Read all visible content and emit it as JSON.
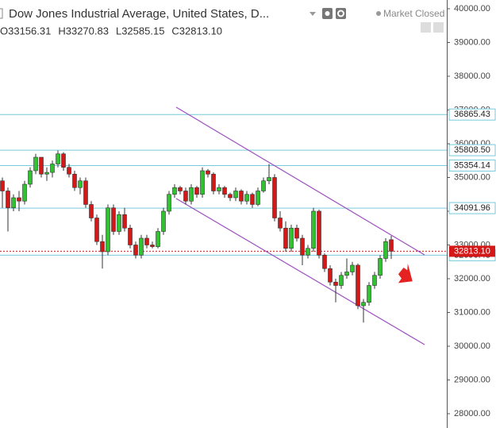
{
  "chart_data": {
    "type": "candlestick",
    "title": "Dow Jones Industrial Average, United States, D...",
    "status": "Market Closed",
    "ohlc_legend": [
      "O33156.31",
      "H33270.83",
      "L32585.15",
      "C32813.10"
    ],
    "up_color": "#2fc42f",
    "down_color": "#d41717",
    "open": [
      34900,
      34600,
      34100,
      34400,
      34300,
      34800,
      35200,
      35600,
      35100,
      35150,
      35400,
      35700,
      35300,
      35100,
      34700,
      34900,
      34200,
      33800,
      33100,
      32800,
      34100,
      33400,
      33900,
      33500,
      33000,
      32700,
      33200,
      33000,
      32950,
      33400,
      34000,
      34500,
      34700,
      34600,
      34300,
      34700,
      34500,
      35200,
      35100,
      34600,
      34700,
      34500,
      34400,
      34600,
      34300,
      34500,
      34200,
      34600,
      34900,
      35000,
      33800,
      33500,
      32900,
      33500,
      33200,
      32700,
      32900,
      34000,
      32700,
      32300,
      31900,
      31800,
      32100,
      32200,
      32400,
      31200,
      31300,
      31800,
      32100,
      32600,
      33156.31
    ],
    "high": [
      35000,
      34700,
      34500,
      34600,
      34900,
      35300,
      35700,
      35600,
      35300,
      35500,
      35800,
      35750,
      35400,
      35200,
      35000,
      35000,
      34300,
      33900,
      33300,
      34200,
      34200,
      34000,
      34100,
      33600,
      33100,
      33300,
      33300,
      33100,
      33500,
      34100,
      34600,
      34800,
      34750,
      34700,
      34800,
      34750,
      35300,
      35250,
      35150,
      34800,
      34750,
      34550,
      34700,
      34650,
      34600,
      34550,
      34700,
      35000,
      35400,
      35100,
      34000,
      33700,
      33600,
      33600,
      33300,
      33000,
      34100,
      34050,
      32750,
      32400,
      32000,
      32200,
      32600,
      32500,
      32450,
      31400,
      31900,
      32200,
      32700,
      33200,
      33270.83
    ],
    "low": [
      34100,
      33400,
      34000,
      34000,
      34200,
      34700,
      35100,
      35000,
      34900,
      35000,
      35300,
      35200,
      35000,
      34600,
      34500,
      34100,
      33700,
      33000,
      32300,
      32700,
      33300,
      33300,
      33400,
      32900,
      32600,
      32600,
      32900,
      32900,
      32900,
      33300,
      33900,
      34400,
      34500,
      34200,
      34200,
      34400,
      34400,
      35000,
      34500,
      34500,
      34400,
      34300,
      34300,
      34200,
      34200,
      34100,
      34150,
      34550,
      34800,
      33700,
      33400,
      32800,
      32800,
      33100,
      32400,
      32600,
      32800,
      32600,
      32200,
      31800,
      31300,
      31700,
      32000,
      32100,
      31100,
      30700,
      31200,
      31700,
      32000,
      32500,
      32585.15
    ],
    "close": [
      34600,
      34100,
      34400,
      34300,
      34800,
      35200,
      35600,
      35100,
      35150,
      35400,
      35700,
      35300,
      35100,
      34700,
      34900,
      34200,
      33800,
      33100,
      32800,
      34100,
      33400,
      33900,
      33500,
      33000,
      32700,
      33200,
      33000,
      32950,
      33400,
      34000,
      34500,
      34700,
      34600,
      34300,
      34700,
      34500,
      35200,
      35100,
      34600,
      34700,
      34500,
      34400,
      34600,
      34300,
      34500,
      34200,
      34600,
      34900,
      35000,
      33800,
      33500,
      32900,
      33500,
      33200,
      32700,
      32900,
      34000,
      32700,
      32300,
      31900,
      31800,
      32100,
      32200,
      32400,
      31200,
      31300,
      31800,
      32100,
      32600,
      33100,
      32813.1
    ],
    "ylim": [
      27576,
      40259
    ],
    "yticks": [
      {
        "value": 28000,
        "label": "28000.00"
      },
      {
        "value": 29000,
        "label": "29000.00"
      },
      {
        "value": 30000,
        "label": "30000.00"
      },
      {
        "value": 31000,
        "label": "31000.00"
      },
      {
        "value": 32000,
        "label": "32000.00"
      },
      {
        "value": 33000,
        "label": "33000.00"
      },
      {
        "value": 34000,
        "label": "34000.00"
      },
      {
        "value": 35000,
        "label": "35000.00"
      },
      {
        "value": 36000,
        "label": "36000.00"
      },
      {
        "value": 37000,
        "label": "37000.00"
      },
      {
        "value": 38000,
        "label": "38000.00"
      },
      {
        "value": 39000,
        "label": "39000.00"
      },
      {
        "value": 40000,
        "label": "40000.00"
      }
    ],
    "levels": [
      36865.43,
      {
        "value": 35808.5,
        "label": "35808.50"
      },
      35354.14,
      34091.96,
      32696.48
    ],
    "level_color": "#77cbdc",
    "last_price": {
      "value": 32813.1,
      "label": "32813.10"
    }
  }
}
